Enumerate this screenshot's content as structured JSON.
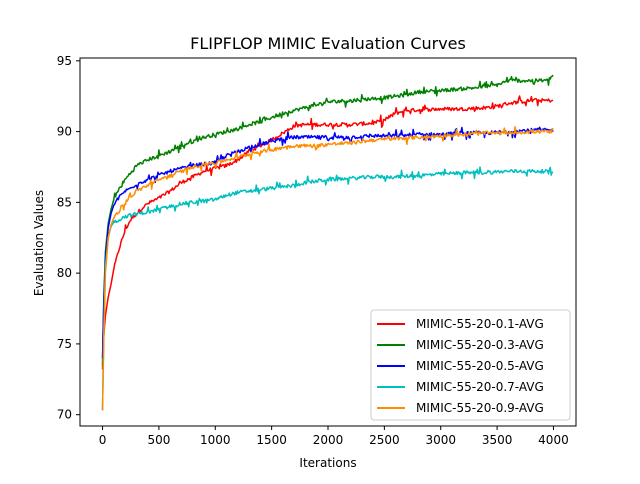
{
  "chart_data": {
    "type": "line",
    "title": "FLIPFLOP MIMIC Evaluation Curves",
    "xlabel": "Iterations",
    "ylabel": "Evaluation Values",
    "xlim": [
      -200,
      4200
    ],
    "ylim": [
      69.2,
      95.2
    ],
    "xticks": [
      0,
      500,
      1000,
      1500,
      2000,
      2500,
      3000,
      3500,
      4000
    ],
    "xtick_labels": [
      "0",
      "500",
      "1000",
      "1500",
      "2000",
      "2500",
      "3000",
      "3500",
      "4000"
    ],
    "yticks": [
      70,
      75,
      80,
      85,
      90,
      95
    ],
    "ytick_labels": [
      "70",
      "75",
      "80",
      "85",
      "90",
      "95"
    ],
    "grid": false,
    "legend_position": "lower-right",
    "series": [
      {
        "name": "MIMIC-55-20-0.1-AVG",
        "color": "#ff0000",
        "points": [
          [
            0,
            73.2
          ],
          [
            10,
            75.5
          ],
          [
            25,
            77
          ],
          [
            50,
            78.3
          ],
          [
            75,
            79.2
          ],
          [
            100,
            80.3
          ],
          [
            150,
            81.8
          ],
          [
            200,
            83
          ],
          [
            250,
            83.8
          ],
          [
            300,
            84.2
          ],
          [
            350,
            84.6
          ],
          [
            400,
            84.9
          ],
          [
            500,
            85.3
          ],
          [
            600,
            85.8
          ],
          [
            700,
            86.4
          ],
          [
            800,
            86.8
          ],
          [
            900,
            87.2
          ],
          [
            1000,
            87.4
          ],
          [
            1100,
            87.6
          ],
          [
            1200,
            88
          ],
          [
            1300,
            88.6
          ],
          [
            1400,
            89
          ],
          [
            1500,
            89.4
          ],
          [
            1600,
            89.9
          ],
          [
            1700,
            90.4
          ],
          [
            1800,
            90.5
          ],
          [
            2000,
            90.5
          ],
          [
            2200,
            90.5
          ],
          [
            2400,
            90.6
          ],
          [
            2500,
            90.8
          ],
          [
            2600,
            91.3
          ],
          [
            2700,
            91.5
          ],
          [
            3000,
            91.6
          ],
          [
            3200,
            91.6
          ],
          [
            3400,
            91.7
          ],
          [
            3500,
            91.8
          ],
          [
            3600,
            92
          ],
          [
            3800,
            92.2
          ],
          [
            4000,
            92.2
          ]
        ]
      },
      {
        "name": "MIMIC-55-20-0.3-AVG",
        "color": "#008000",
        "points": [
          [
            0,
            73.5
          ],
          [
            10,
            78
          ],
          [
            25,
            81.5
          ],
          [
            50,
            83.5
          ],
          [
            75,
            84.5
          ],
          [
            100,
            85.2
          ],
          [
            150,
            86
          ],
          [
            200,
            86.6
          ],
          [
            250,
            87.1
          ],
          [
            300,
            87.6
          ],
          [
            400,
            88
          ],
          [
            500,
            88.3
          ],
          [
            600,
            88.6
          ],
          [
            700,
            89
          ],
          [
            800,
            89.3
          ],
          [
            900,
            89.6
          ],
          [
            1000,
            89.8
          ],
          [
            1100,
            90
          ],
          [
            1200,
            90.2
          ],
          [
            1300,
            90.5
          ],
          [
            1400,
            90.7
          ],
          [
            1500,
            91
          ],
          [
            1600,
            91.3
          ],
          [
            1700,
            91.5
          ],
          [
            1800,
            91.7
          ],
          [
            1900,
            91.9
          ],
          [
            2000,
            92.1
          ],
          [
            2200,
            92.2
          ],
          [
            2500,
            92.4
          ],
          [
            2700,
            92.6
          ],
          [
            2800,
            92.8
          ],
          [
            3000,
            92.9
          ],
          [
            3300,
            93.1
          ],
          [
            3500,
            93.3
          ],
          [
            3600,
            93.6
          ],
          [
            3800,
            93.6
          ],
          [
            3950,
            93.6
          ],
          [
            4000,
            94
          ]
        ]
      },
      {
        "name": "MIMIC-55-20-0.5-AVG",
        "color": "#0000ff",
        "points": [
          [
            0,
            74
          ],
          [
            10,
            77.5
          ],
          [
            25,
            81
          ],
          [
            50,
            83.2
          ],
          [
            75,
            84.2
          ],
          [
            100,
            84.8
          ],
          [
            150,
            85.4
          ],
          [
            200,
            85.8
          ],
          [
            250,
            86
          ],
          [
            300,
            86.3
          ],
          [
            400,
            86.6
          ],
          [
            500,
            86.9
          ],
          [
            600,
            87.2
          ],
          [
            700,
            87.4
          ],
          [
            800,
            87.6
          ],
          [
            900,
            87.7
          ],
          [
            1000,
            87.8
          ],
          [
            1100,
            88.3
          ],
          [
            1200,
            88.6
          ],
          [
            1300,
            88.9
          ],
          [
            1400,
            89.1
          ],
          [
            1500,
            89.3
          ],
          [
            1600,
            89.5
          ],
          [
            1700,
            89.6
          ],
          [
            1800,
            89.6
          ],
          [
            2000,
            89.6
          ],
          [
            2200,
            89.6
          ],
          [
            2400,
            89.7
          ],
          [
            2600,
            89.7
          ],
          [
            2800,
            89.8
          ],
          [
            3000,
            89.8
          ],
          [
            3200,
            89.9
          ],
          [
            3400,
            89.9
          ],
          [
            3600,
            90
          ],
          [
            3800,
            90.1
          ],
          [
            4000,
            90.1
          ]
        ]
      },
      {
        "name": "MIMIC-55-20-0.7-AVG",
        "color": "#00bfbf",
        "points": [
          [
            0,
            70.3
          ],
          [
            10,
            75.5
          ],
          [
            25,
            80.5
          ],
          [
            50,
            82.5
          ],
          [
            75,
            83.3
          ],
          [
            100,
            83.6
          ],
          [
            150,
            83.8
          ],
          [
            200,
            84
          ],
          [
            300,
            84.2
          ],
          [
            400,
            84.3
          ],
          [
            500,
            84.5
          ],
          [
            600,
            84.7
          ],
          [
            700,
            84.9
          ],
          [
            800,
            85
          ],
          [
            900,
            85.1
          ],
          [
            1000,
            85.2
          ],
          [
            1100,
            85.5
          ],
          [
            1200,
            85.7
          ],
          [
            1300,
            85.8
          ],
          [
            1400,
            85.9
          ],
          [
            1500,
            86
          ],
          [
            1600,
            86.1
          ],
          [
            1700,
            86.2
          ],
          [
            1800,
            86.4
          ],
          [
            1900,
            86.5
          ],
          [
            2000,
            86.6
          ],
          [
            2200,
            86.7
          ],
          [
            2400,
            86.8
          ],
          [
            2600,
            86.8
          ],
          [
            2800,
            86.9
          ],
          [
            3000,
            87
          ],
          [
            3200,
            87.1
          ],
          [
            3400,
            87.1
          ],
          [
            3600,
            87.2
          ],
          [
            3800,
            87.2
          ],
          [
            4000,
            87.2
          ]
        ]
      },
      {
        "name": "MIMIC-55-20-0.9-AVG",
        "color": "#ff8c00",
        "points": [
          [
            0,
            70.3
          ],
          [
            10,
            75
          ],
          [
            25,
            80
          ],
          [
            50,
            82.5
          ],
          [
            75,
            83.4
          ],
          [
            100,
            83.9
          ],
          [
            150,
            84.5
          ],
          [
            200,
            85
          ],
          [
            250,
            85.4
          ],
          [
            300,
            85.8
          ],
          [
            400,
            86.2
          ],
          [
            500,
            86.6
          ],
          [
            600,
            86.9
          ],
          [
            700,
            87.2
          ],
          [
            800,
            87.5
          ],
          [
            900,
            87.7
          ],
          [
            1000,
            87.8
          ],
          [
            1100,
            88
          ],
          [
            1200,
            88.2
          ],
          [
            1300,
            88.4
          ],
          [
            1400,
            88.6
          ],
          [
            1500,
            88.7
          ],
          [
            1600,
            88.9
          ],
          [
            1700,
            89
          ],
          [
            1800,
            89
          ],
          [
            1900,
            89
          ],
          [
            2000,
            89.1
          ],
          [
            2200,
            89.2
          ],
          [
            2400,
            89.4
          ],
          [
            2600,
            89.5
          ],
          [
            2800,
            89.6
          ],
          [
            3000,
            89.7
          ],
          [
            3200,
            89.8
          ],
          [
            3400,
            89.9
          ],
          [
            3600,
            89.9
          ],
          [
            3800,
            90
          ],
          [
            4000,
            90
          ]
        ]
      }
    ]
  }
}
